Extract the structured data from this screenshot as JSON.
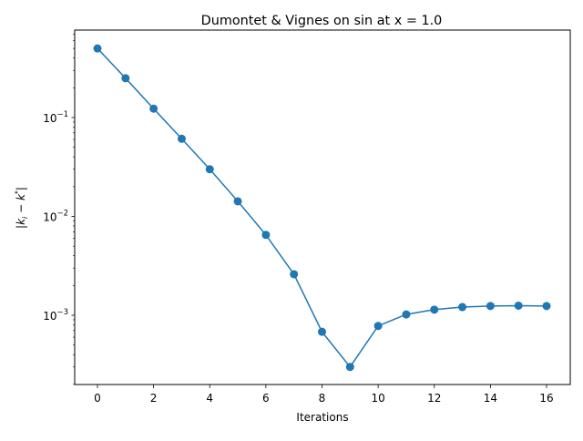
{
  "chart_data": {
    "type": "line",
    "title": "Dumontet & Vignes on sin at x = 1.0",
    "xlabel": "Iterations",
    "ylabel": "|k_i − k*|",
    "yscale": "log",
    "grid": false,
    "legend": null,
    "xlim": [
      -0.8,
      16.8
    ],
    "ylim": [
      0.00022,
      0.8
    ],
    "x_ticks": [
      0,
      2,
      4,
      6,
      8,
      10,
      12,
      14,
      16
    ],
    "y_ticks": [
      {
        "value": 0.1,
        "label_base": "10",
        "label_exp": "−1"
      },
      {
        "value": 0.01,
        "label_base": "10",
        "label_exp": "−2"
      },
      {
        "value": 0.001,
        "label_base": "10",
        "label_exp": "−3"
      }
    ],
    "series": [
      {
        "name": "|k_i − k*|",
        "color": "#1f77b4",
        "marker": "o",
        "x": [
          0,
          1,
          2,
          3,
          4,
          5,
          6,
          7,
          8,
          9,
          10,
          11,
          12,
          13,
          14,
          15,
          16
        ],
        "values": [
          0.5,
          0.25,
          0.123,
          0.061,
          0.03,
          0.0142,
          0.0065,
          0.0026,
          0.00068,
          0.0003,
          0.00078,
          0.00102,
          0.00114,
          0.00121,
          0.00124,
          0.00125,
          0.00124
        ]
      }
    ]
  }
}
